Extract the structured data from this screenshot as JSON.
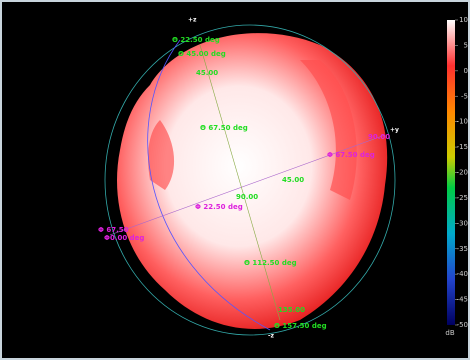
{
  "axes": {
    "top": "+z",
    "right": "+y",
    "bottom": "-z"
  },
  "labels": {
    "theta_22": "Θ 22.50 deg",
    "theta_45_top": "Θ 45.00 deg",
    "theta_45": "45.00",
    "theta_67": "Θ 67.50 deg",
    "phi_90": "90.00",
    "phi_67_right": "Φ 67.50 deg",
    "phi_45": "45.00",
    "theta_90": "90.00",
    "phi_22": "Φ 22.50 deg",
    "phi_67_left": "Φ 67.50",
    "phi_0": "Φ0.00 deg",
    "theta_112": "Θ 112.50 deg",
    "theta_135": "135.00",
    "theta_157": "Θ 157.50 deg"
  },
  "colorbar": {
    "ticks": [
      10,
      5,
      0,
      -5,
      -10,
      -15,
      -20,
      -25,
      -30,
      -35,
      -40,
      -45,
      -50
    ],
    "unit": "dB"
  }
}
